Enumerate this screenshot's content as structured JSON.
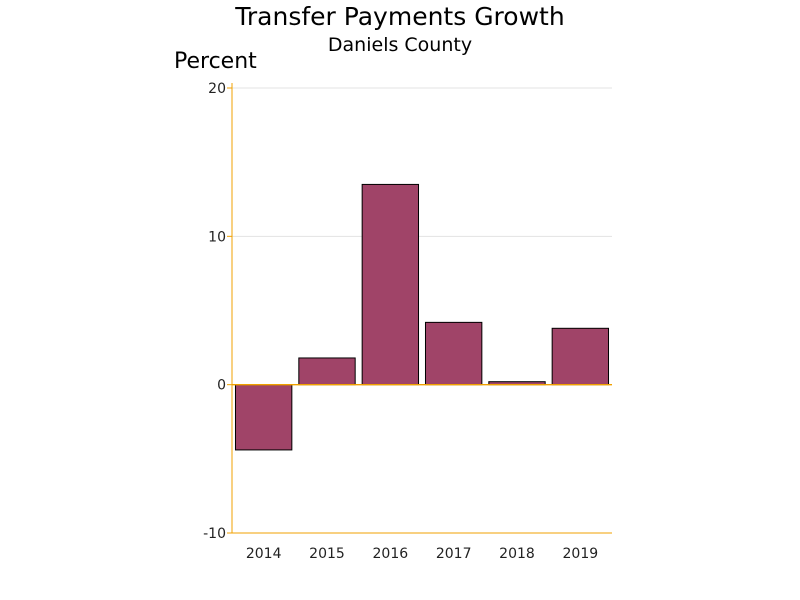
{
  "chart_data": {
    "type": "bar",
    "title": "Transfer Payments Growth",
    "subtitle": "Daniels County",
    "ylabel": "Percent",
    "xlabel": "",
    "categories": [
      "2014",
      "2015",
      "2016",
      "2017",
      "2018",
      "2019"
    ],
    "values": [
      -4.4,
      1.8,
      13.5,
      4.2,
      0.2,
      3.8
    ],
    "ylim": [
      -10,
      20
    ],
    "yticks": [
      -10,
      0,
      10,
      20
    ],
    "grid": true,
    "legend": "none",
    "colors": {
      "bar": "#a04468",
      "axis": "#f0a000",
      "grid": "#e3e3e3"
    }
  }
}
